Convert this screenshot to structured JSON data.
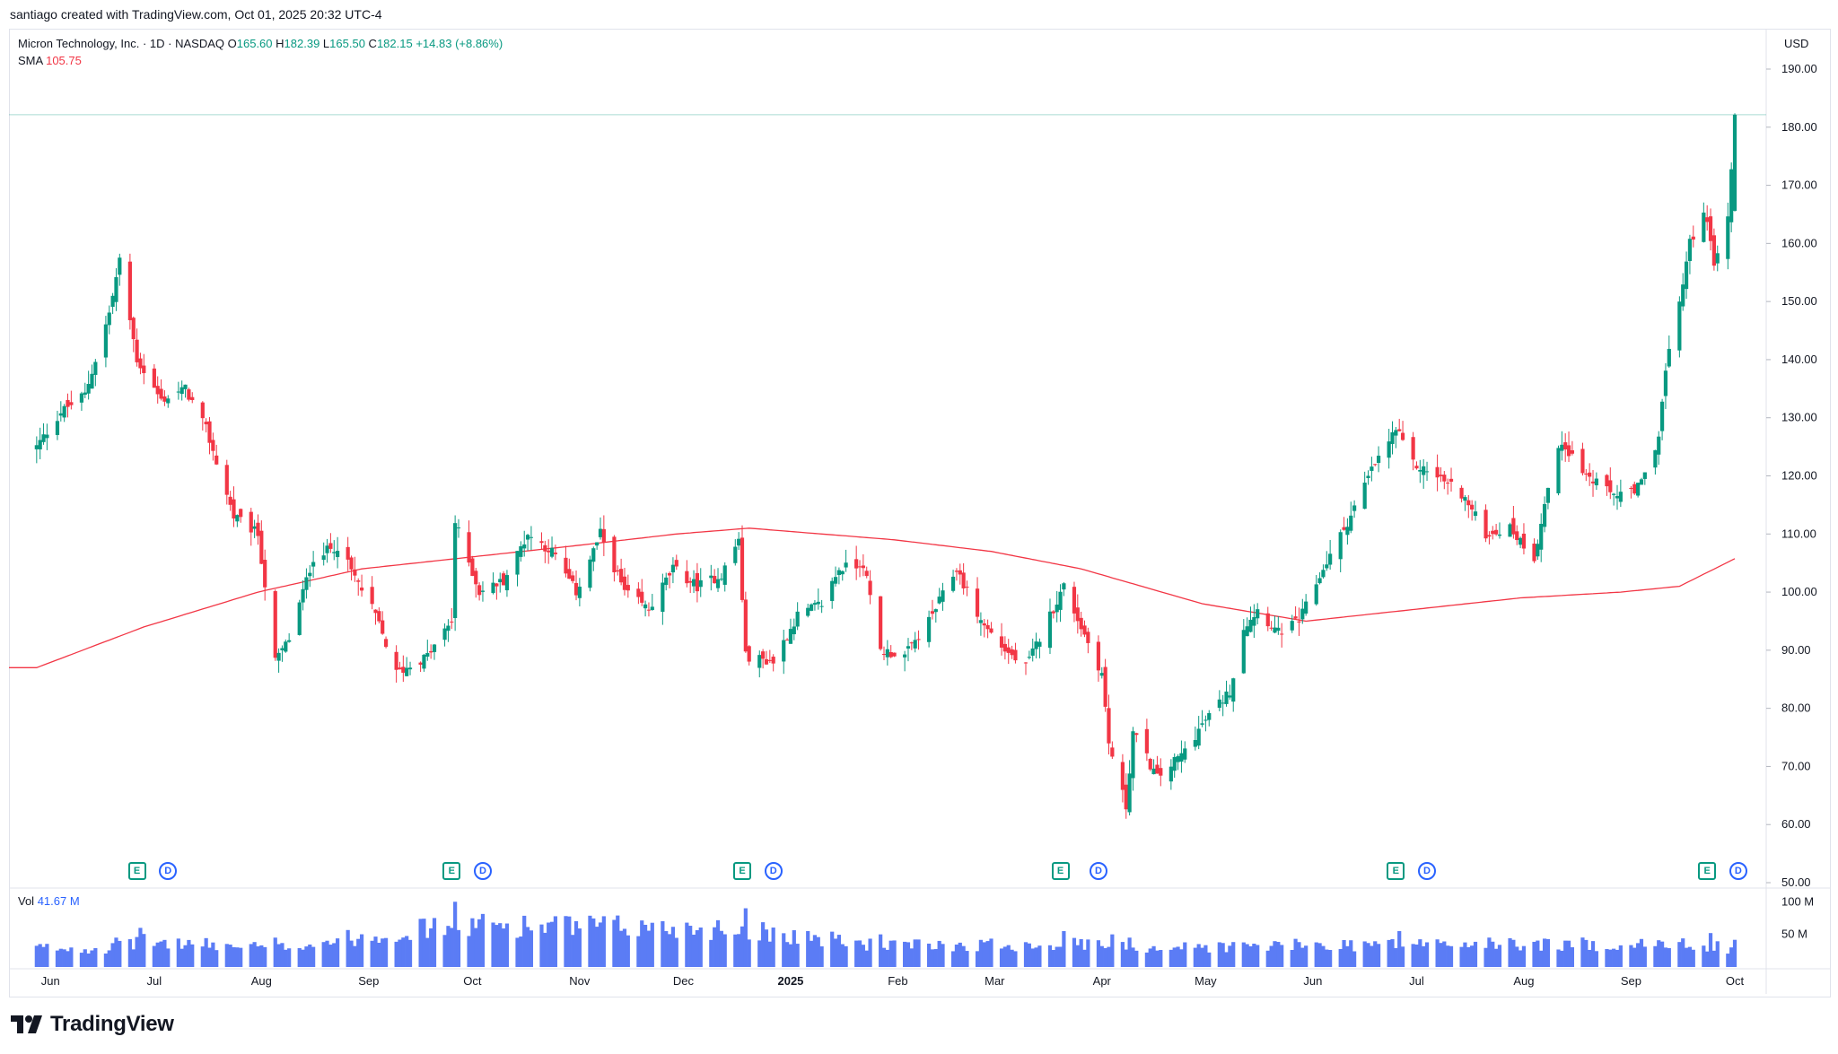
{
  "credit": "santiago created with TradingView.com, Oct 01, 2025 20:32 UTC-4",
  "legend": {
    "title": "Micron Technology, Inc. · 1D · NASDAQ",
    "o_label": "O",
    "o_value": "165.60",
    "h_label": "H",
    "h_value": "182.39",
    "l_label": "L",
    "l_value": "165.50",
    "c_label": "C",
    "c_value": "182.15",
    "change": "+14.83 (+8.86%)",
    "sma_label": "SMA",
    "sma_value": "105.75"
  },
  "volume_legend": {
    "label": "Vol",
    "value": "41.67 M"
  },
  "currency": "USD",
  "events": [
    {
      "type": "E",
      "label": "E"
    },
    {
      "type": "D",
      "label": "D"
    },
    {
      "type": "E",
      "label": "E"
    },
    {
      "type": "D",
      "label": "D"
    },
    {
      "type": "E",
      "label": "E"
    },
    {
      "type": "D",
      "label": "D"
    },
    {
      "type": "E",
      "label": "E"
    },
    {
      "type": "D",
      "label": "D"
    },
    {
      "type": "E",
      "label": "E"
    },
    {
      "type": "D",
      "label": "D"
    },
    {
      "type": "E",
      "label": "E"
    },
    {
      "type": "D",
      "label": "D"
    }
  ],
  "logo_text": "TradingView",
  "colors": {
    "up": "#089981",
    "down": "#f23645",
    "sma": "#f23645",
    "volume": "#5b7cf5",
    "price_line": "#089981"
  },
  "chart_data": {
    "type": "candlestick",
    "title": "Micron Technology, Inc. · 1D · NASDAQ",
    "interval": "1D",
    "y_ticks": [
      "190.00",
      "180.00",
      "170.00",
      "160.00",
      "150.00",
      "140.00",
      "130.00",
      "120.00",
      "110.00",
      "100.00",
      "90.00",
      "80.00",
      "70.00",
      "60.00",
      "50.00"
    ],
    "ylim": [
      50,
      190
    ],
    "volume_ticks": [
      "100 M",
      "50 M"
    ],
    "x_ticks": [
      "Jun",
      "Jul",
      "Aug",
      "Sep",
      "Oct",
      "Nov",
      "Dec",
      "2025",
      "Feb",
      "Mar",
      "Apr",
      "May",
      "Jun",
      "Jul",
      "Aug",
      "Sep",
      "Oct"
    ],
    "last_price": 182.15,
    "price_keypoints": [
      {
        "date": "2024-05-28",
        "close": 125
      },
      {
        "date": "2024-06-04",
        "close": 131
      },
      {
        "date": "2024-06-11",
        "close": 134
      },
      {
        "date": "2024-06-18",
        "close": 148
      },
      {
        "date": "2024-06-21",
        "close": 157
      },
      {
        "date": "2024-06-26",
        "close": 140
      },
      {
        "date": "2024-07-03",
        "close": 133
      },
      {
        "date": "2024-07-10",
        "close": 135
      },
      {
        "date": "2024-07-16",
        "close": 128
      },
      {
        "date": "2024-07-24",
        "close": 113
      },
      {
        "date": "2024-07-31",
        "close": 110
      },
      {
        "date": "2024-08-05",
        "close": 88
      },
      {
        "date": "2024-08-09",
        "close": 92
      },
      {
        "date": "2024-08-16",
        "close": 106
      },
      {
        "date": "2024-08-23",
        "close": 108
      },
      {
        "date": "2024-09-03",
        "close": 96
      },
      {
        "date": "2024-09-09",
        "close": 86
      },
      {
        "date": "2024-09-18",
        "close": 89
      },
      {
        "date": "2024-09-25",
        "close": 95
      },
      {
        "date": "2024-09-26",
        "close": 112
      },
      {
        "date": "2024-10-03",
        "close": 100
      },
      {
        "date": "2024-10-10",
        "close": 102
      },
      {
        "date": "2024-10-17",
        "close": 110
      },
      {
        "date": "2024-10-24",
        "close": 107
      },
      {
        "date": "2024-10-31",
        "close": 100
      },
      {
        "date": "2024-11-07",
        "close": 110
      },
      {
        "date": "2024-11-14",
        "close": 100
      },
      {
        "date": "2024-11-21",
        "close": 97
      },
      {
        "date": "2024-11-28",
        "close": 104
      },
      {
        "date": "2024-12-05",
        "close": 101
      },
      {
        "date": "2024-12-12",
        "close": 103
      },
      {
        "date": "2024-12-17",
        "close": 109
      },
      {
        "date": "2024-12-19",
        "close": 89
      },
      {
        "date": "2024-12-27",
        "close": 88
      },
      {
        "date": "2025-01-03",
        "close": 96
      },
      {
        "date": "2025-01-10",
        "close": 98
      },
      {
        "date": "2025-01-15",
        "close": 104
      },
      {
        "date": "2025-01-22",
        "close": 105
      },
      {
        "date": "2025-01-27",
        "close": 90
      },
      {
        "date": "2025-02-03",
        "close": 89
      },
      {
        "date": "2025-02-10",
        "close": 95
      },
      {
        "date": "2025-02-18",
        "close": 104
      },
      {
        "date": "2025-02-25",
        "close": 95
      },
      {
        "date": "2025-03-04",
        "close": 90
      },
      {
        "date": "2025-03-10",
        "close": 87
      },
      {
        "date": "2025-03-17",
        "close": 96
      },
      {
        "date": "2025-03-21",
        "close": 101
      },
      {
        "date": "2025-03-26",
        "close": 94
      },
      {
        "date": "2025-04-01",
        "close": 86
      },
      {
        "date": "2025-04-03",
        "close": 74
      },
      {
        "date": "2025-04-08",
        "close": 63
      },
      {
        "date": "2025-04-10",
        "close": 76
      },
      {
        "date": "2025-04-17",
        "close": 68
      },
      {
        "date": "2025-04-24",
        "close": 72
      },
      {
        "date": "2025-05-01",
        "close": 78
      },
      {
        "date": "2025-05-08",
        "close": 83
      },
      {
        "date": "2025-05-12",
        "close": 94
      },
      {
        "date": "2025-05-16",
        "close": 97
      },
      {
        "date": "2025-05-22",
        "close": 93
      },
      {
        "date": "2025-05-28",
        "close": 95
      },
      {
        "date": "2025-06-04",
        "close": 104
      },
      {
        "date": "2025-06-11",
        "close": 112
      },
      {
        "date": "2025-06-18",
        "close": 121
      },
      {
        "date": "2025-06-25",
        "close": 128
      },
      {
        "date": "2025-06-30",
        "close": 122
      },
      {
        "date": "2025-07-07",
        "close": 120
      },
      {
        "date": "2025-07-14",
        "close": 117
      },
      {
        "date": "2025-07-21",
        "close": 110
      },
      {
        "date": "2025-07-28",
        "close": 111
      },
      {
        "date": "2025-08-04",
        "close": 106
      },
      {
        "date": "2025-08-08",
        "close": 118
      },
      {
        "date": "2025-08-12",
        "close": 126
      },
      {
        "date": "2025-08-19",
        "close": 120
      },
      {
        "date": "2025-08-26",
        "close": 117
      },
      {
        "date": "2025-09-02",
        "close": 117
      },
      {
        "date": "2025-09-05",
        "close": 120
      },
      {
        "date": "2025-09-09",
        "close": 127
      },
      {
        "date": "2025-09-11",
        "close": 138
      },
      {
        "date": "2025-09-15",
        "close": 150
      },
      {
        "date": "2025-09-18",
        "close": 160
      },
      {
        "date": "2025-09-22",
        "close": 166
      },
      {
        "date": "2025-09-25",
        "close": 157
      },
      {
        "date": "2025-09-29",
        "close": 164
      },
      {
        "date": "2025-10-01",
        "close": 182
      }
    ],
    "series": [
      {
        "name": "SMA",
        "keypoints": [
          {
            "date": "2024-05-28",
            "value": 87
          },
          {
            "date": "2024-06-28",
            "value": 94
          },
          {
            "date": "2024-07-31",
            "value": 100
          },
          {
            "date": "2024-08-30",
            "value": 104
          },
          {
            "date": "2024-09-30",
            "value": 106
          },
          {
            "date": "2024-10-31",
            "value": 108
          },
          {
            "date": "2024-11-29",
            "value": 110
          },
          {
            "date": "2024-12-20",
            "value": 111
          },
          {
            "date": "2025-01-31",
            "value": 109
          },
          {
            "date": "2025-02-28",
            "value": 107
          },
          {
            "date": "2025-03-26",
            "value": 104
          },
          {
            "date": "2025-04-30",
            "value": 98
          },
          {
            "date": "2025-05-30",
            "value": 95
          },
          {
            "date": "2025-06-30",
            "value": 97
          },
          {
            "date": "2025-07-31",
            "value": 99
          },
          {
            "date": "2025-08-29",
            "value": 100
          },
          {
            "date": "2025-09-15",
            "value": 101
          },
          {
            "date": "2025-10-01",
            "value": 105.75
          }
        ]
      }
    ],
    "volume_keypoints": [
      {
        "date": "2024-06-20",
        "value": 45
      },
      {
        "date": "2024-06-27",
        "value": 60
      },
      {
        "date": "2024-08-05",
        "value": 45
      },
      {
        "date": "2024-09-26",
        "value": 100
      },
      {
        "date": "2024-12-19",
        "value": 90
      },
      {
        "date": "2025-01-27",
        "value": 50
      },
      {
        "date": "2025-03-21",
        "value": 55
      },
      {
        "date": "2025-04-04",
        "value": 50
      },
      {
        "date": "2025-04-09",
        "value": 45
      },
      {
        "date": "2025-06-26",
        "value": 55
      },
      {
        "date": "2025-09-24",
        "value": 52
      },
      {
        "date": "2025-10-01",
        "value": 41.67
      }
    ]
  }
}
